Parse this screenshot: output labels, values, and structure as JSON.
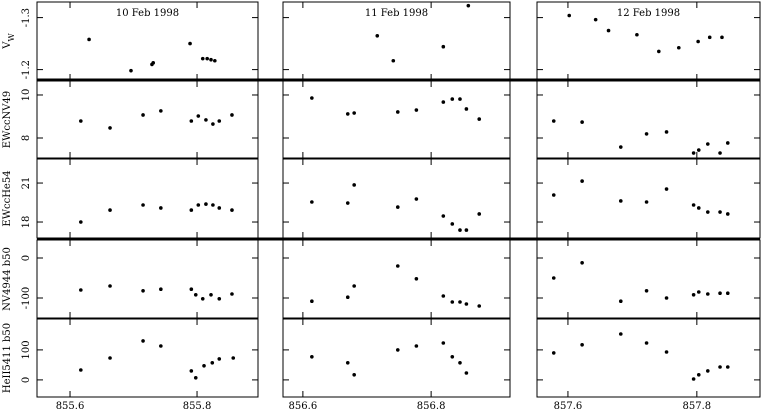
{
  "chart_data": {
    "type": "scatter",
    "columns": [
      {
        "title": "10 Feb 1998",
        "xlim": [
          855.548,
          855.896
        ],
        "xticks": [
          855.6,
          855.8
        ]
      },
      {
        "title": "11 Feb 1998",
        "xlim": [
          856.569,
          856.923
        ],
        "xticks": [
          856.6,
          856.8
        ]
      },
      {
        "title": "12 Feb 1998",
        "xlim": [
          857.552,
          857.898
        ],
        "xticks": [
          857.6,
          857.8
        ]
      }
    ],
    "rows": [
      {
        "ylabel": "V",
        "ylabel_sub": "W",
        "ylim": [
          -1.18,
          -1.33
        ],
        "yticks": [
          -1.3,
          -1.2
        ]
      },
      {
        "ylabel": "EWccNV49",
        "ylim": [
          7.07,
          10.65
        ],
        "yticks": [
          8,
          10
        ]
      },
      {
        "ylabel": "EWccHe54",
        "ylim": [
          16.77,
          22.85
        ],
        "yticks": [
          18,
          21
        ]
      },
      {
        "ylabel": "NV4944 b50",
        "ylim": [
          -150,
          45
        ],
        "yticks": [
          -100,
          0
        ]
      },
      {
        "ylabel": "HeII5411 b50",
        "ylim": [
          -57,
          203
        ],
        "yticks": [
          0,
          100
        ]
      }
    ],
    "panels": [
      [
        {
          "x": [
            855.63,
            855.696,
            855.729,
            855.731,
            855.789,
            855.809,
            855.816,
            855.822,
            855.828
          ],
          "values": [
            -1.258,
            -1.198,
            -1.21,
            -1.213,
            -1.25,
            -1.221,
            -1.221,
            -1.219,
            -1.217
          ]
        },
        {
          "x": [
            856.716,
            856.741,
            856.819,
            856.858
          ],
          "values": [
            -1.265,
            -1.217,
            -1.244,
            -1.323
          ]
        },
        {
          "x": [
            857.602,
            857.643,
            857.663,
            857.707,
            857.741,
            857.772,
            857.802,
            857.82,
            857.839
          ],
          "values": [
            -1.304,
            -1.296,
            -1.275,
            -1.267,
            -1.235,
            -1.242,
            -1.254,
            -1.262,
            -1.262
          ]
        }
      ],
      [
        {
          "x": [
            855.617,
            855.663,
            855.715,
            855.743,
            855.791,
            855.802,
            855.814,
            855.825,
            855.835,
            855.855
          ],
          "values": [
            8.79,
            8.47,
            9.07,
            9.26,
            8.79,
            9.02,
            8.84,
            8.65,
            8.79,
            9.07
          ]
        },
        {
          "x": [
            856.614,
            856.67,
            856.68,
            856.748,
            856.777,
            856.819,
            856.833,
            856.845,
            856.855,
            856.875
          ],
          "values": [
            9.86,
            9.12,
            9.16,
            9.21,
            9.3,
            9.67,
            9.81,
            9.81,
            9.35,
            8.88
          ]
        },
        {
          "x": [
            857.578,
            857.622,
            857.682,
            857.722,
            857.753,
            857.795,
            857.803,
            857.817,
            857.836,
            857.848
          ],
          "values": [
            8.79,
            8.74,
            7.58,
            8.19,
            8.28,
            7.3,
            7.44,
            7.72,
            7.3,
            7.77
          ]
        }
      ],
      [
        {
          "x": [
            855.617,
            855.663,
            855.715,
            855.743,
            855.791,
            855.802,
            855.814,
            855.825,
            855.835,
            855.855
          ],
          "values": [
            18.0,
            18.92,
            19.31,
            19.08,
            18.92,
            19.31,
            19.38,
            19.31,
            19.08,
            18.92
          ]
        },
        {
          "x": [
            856.614,
            856.67,
            856.68,
            856.748,
            856.777,
            856.819,
            856.833,
            856.845,
            856.855,
            856.875
          ],
          "values": [
            19.54,
            19.46,
            20.85,
            19.15,
            19.77,
            18.46,
            17.85,
            17.38,
            17.38,
            18.62
          ]
        },
        {
          "x": [
            857.578,
            857.622,
            857.682,
            857.722,
            857.753,
            857.795,
            857.803,
            857.817,
            857.836,
            857.848
          ],
          "values": [
            20.08,
            21.15,
            19.62,
            19.54,
            20.54,
            19.31,
            19.08,
            18.77,
            18.77,
            18.62
          ]
        }
      ],
      [
        {
          "x": [
            855.617,
            855.663,
            855.715,
            855.743,
            855.791,
            855.798,
            855.809,
            855.822,
            855.835,
            855.855
          ],
          "values": [
            -80,
            -70,
            -82,
            -78,
            -78,
            -92,
            -102,
            -92,
            -102,
            -90
          ]
        },
        {
          "x": [
            856.614,
            856.67,
            856.68,
            856.748,
            856.777,
            856.819,
            856.833,
            856.845,
            856.855,
            856.875
          ],
          "values": [
            -108,
            -98,
            -70,
            -20,
            -52,
            -95,
            -110,
            -110,
            -115,
            -120
          ]
        },
        {
          "x": [
            857.578,
            857.622,
            857.682,
            857.722,
            857.753,
            857.795,
            857.803,
            857.817,
            857.836,
            857.848
          ],
          "values": [
            -50,
            -12,
            -108,
            -82,
            -100,
            -92,
            -85,
            -90,
            -88,
            -88
          ]
        }
      ],
      [
        {
          "x": [
            855.617,
            855.663,
            855.715,
            855.743,
            855.791,
            855.798,
            855.811,
            855.824,
            855.835,
            855.857
          ],
          "values": [
            33,
            73,
            130,
            113,
            30,
            7,
            47,
            57,
            70,
            73
          ]
        },
        {
          "x": [
            856.614,
            856.67,
            856.68,
            856.748,
            856.777,
            856.819,
            856.833,
            856.845,
            856.855
          ],
          "values": [
            77,
            57,
            17,
            100,
            113,
            123,
            77,
            57,
            23
          ]
        },
        {
          "x": [
            857.578,
            857.622,
            857.682,
            857.722,
            857.753,
            857.795,
            857.803,
            857.817,
            857.836,
            857.848
          ],
          "values": [
            90,
            117,
            153,
            123,
            93,
            3,
            17,
            30,
            43,
            43
          ]
        }
      ]
    ]
  }
}
